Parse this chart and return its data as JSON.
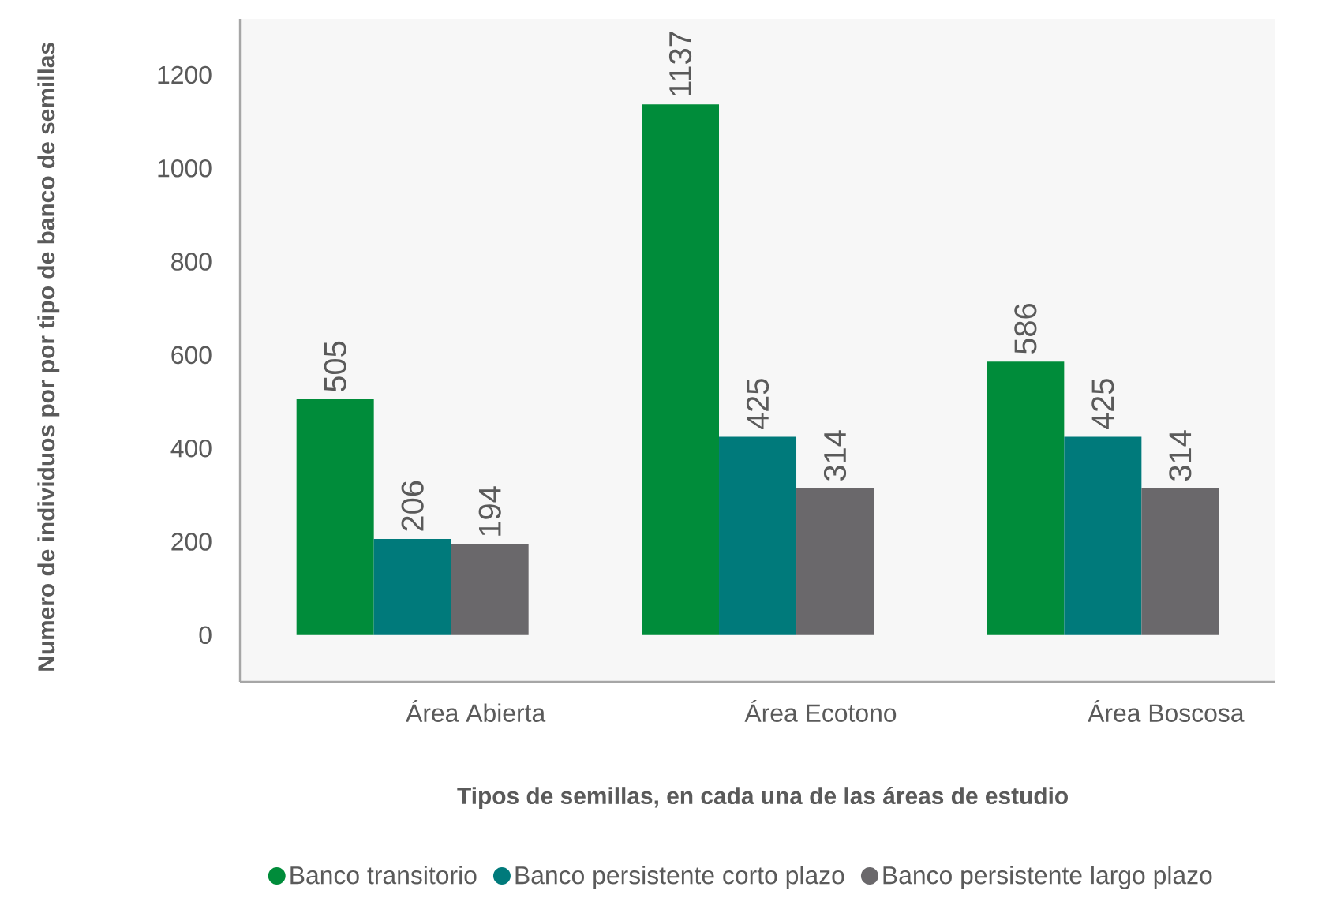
{
  "chart_data": {
    "type": "bar",
    "xlabel": "Tipos de semillas, en cada una de las áreas de estudio",
    "ylabel": "Numero de individuos por por tipo de banco de semillas",
    "categories": [
      "Área Abierta",
      "Área Ecotono",
      "Área Boscosa"
    ],
    "series": [
      {
        "name": "Banco transitorio",
        "color": "#008c3a",
        "values": [
          505,
          1137,
          586
        ]
      },
      {
        "name": "Banco persistente corto plazo",
        "color": "#007a7b",
        "values": [
          206,
          425,
          425
        ]
      },
      {
        "name": "Banco persistente largo plazo",
        "color": "#6a686b",
        "values": [
          194,
          314,
          314
        ]
      }
    ],
    "ylim": [
      -100,
      1320
    ],
    "yticks": [
      0,
      200,
      400,
      600,
      800,
      1000,
      1200
    ],
    "data_labels": true,
    "legend": "bottom",
    "grid": false
  }
}
